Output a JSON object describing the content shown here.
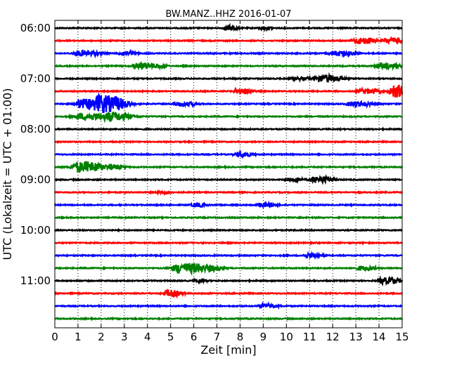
{
  "chart_data": {
    "type": "line",
    "title": "BW.MANZ..HHZ 2016-01-07",
    "xlabel": "Zeit  [min]",
    "ylabel": "UTC (Lokalzeit = UTC + 01:00)",
    "xlim": [
      0,
      15
    ],
    "x_ticks": [
      0,
      1,
      2,
      3,
      4,
      5,
      6,
      7,
      8,
      9,
      10,
      11,
      12,
      13,
      14,
      15
    ],
    "x_grid": "dotted vertical at each minute",
    "y_tick_labels": [
      "06:00",
      "07:00",
      "08:00",
      "09:00",
      "10:00",
      "11:00"
    ],
    "y_tick_positions_minutes": [
      0,
      60,
      120,
      180,
      240,
      300
    ],
    "trace_interval_minutes": 15,
    "trace_colors_cycle": [
      "#000000",
      "#ff0000",
      "#0000ff",
      "#008000"
    ],
    "traces": [
      {
        "start": "06:00",
        "color": "#000000",
        "events": [
          {
            "t": 7.5,
            "amp": 0.25,
            "width": 0.3
          },
          {
            "t": 9.0,
            "amp": 0.15,
            "width": 0.3
          }
        ]
      },
      {
        "start": "06:15",
        "color": "#ff0000",
        "events": [
          {
            "t": 13.2,
            "amp": 0.35,
            "width": 0.5
          },
          {
            "t": 14.5,
            "amp": 0.3,
            "width": 0.4
          }
        ]
      },
      {
        "start": "06:30",
        "color": "#0000ff",
        "events": [
          {
            "t": 1.2,
            "amp": 0.3,
            "width": 0.6
          },
          {
            "t": 3.0,
            "amp": 0.2,
            "width": 0.4
          },
          {
            "t": 12.2,
            "amp": 0.25,
            "width": 0.6
          }
        ]
      },
      {
        "start": "06:45",
        "color": "#008000",
        "events": [
          {
            "t": 3.6,
            "amp": 0.35,
            "width": 0.4
          },
          {
            "t": 4.3,
            "amp": 0.2,
            "width": 0.4
          },
          {
            "t": 14.2,
            "amp": 0.3,
            "width": 0.5
          }
        ]
      },
      {
        "start": "07:00",
        "color": "#000000",
        "events": [
          {
            "t": 11.6,
            "amp": 0.4,
            "width": 0.6
          },
          {
            "t": 10.5,
            "amp": 0.15,
            "width": 0.4
          }
        ]
      },
      {
        "start": "07:15",
        "color": "#ff0000",
        "events": [
          {
            "t": 8.0,
            "amp": 0.3,
            "width": 0.4
          },
          {
            "t": 13.4,
            "amp": 0.25,
            "width": 0.5
          },
          {
            "t": 14.8,
            "amp": 0.7,
            "width": 0.5
          }
        ]
      },
      {
        "start": "07:30",
        "color": "#0000ff",
        "events": [
          {
            "t": 1.3,
            "amp": 0.55,
            "width": 0.6
          },
          {
            "t": 2.2,
            "amp": 0.9,
            "width": 0.7
          },
          {
            "t": 5.5,
            "amp": 0.2,
            "width": 0.5
          },
          {
            "t": 13.0,
            "amp": 0.25,
            "width": 0.6
          }
        ]
      },
      {
        "start": "07:45",
        "color": "#008000",
        "events": [
          {
            "t": 1.5,
            "amp": 0.35,
            "width": 1.0
          },
          {
            "t": 2.6,
            "amp": 0.3,
            "width": 0.6
          }
        ]
      },
      {
        "start": "08:00",
        "color": "#000000",
        "events": []
      },
      {
        "start": "08:15",
        "color": "#ff0000",
        "events": []
      },
      {
        "start": "08:30",
        "color": "#0000ff",
        "events": [
          {
            "t": 8.0,
            "amp": 0.25,
            "width": 0.4
          }
        ]
      },
      {
        "start": "08:45",
        "color": "#008000",
        "events": [
          {
            "t": 1.2,
            "amp": 0.6,
            "width": 0.7
          },
          {
            "t": 2.5,
            "amp": 0.25,
            "width": 0.4
          }
        ]
      },
      {
        "start": "09:00",
        "color": "#000000",
        "events": [
          {
            "t": 11.4,
            "amp": 0.35,
            "width": 0.5
          },
          {
            "t": 10.2,
            "amp": 0.15,
            "width": 0.4
          }
        ]
      },
      {
        "start": "09:15",
        "color": "#ff0000",
        "events": [
          {
            "t": 4.6,
            "amp": 0.15,
            "width": 0.3
          }
        ]
      },
      {
        "start": "09:30",
        "color": "#0000ff",
        "events": [
          {
            "t": 6.1,
            "amp": 0.2,
            "width": 0.3
          },
          {
            "t": 9.0,
            "amp": 0.25,
            "width": 0.4
          }
        ]
      },
      {
        "start": "09:45",
        "color": "#008000",
        "events": []
      },
      {
        "start": "10:00",
        "color": "#000000",
        "events": []
      },
      {
        "start": "10:15",
        "color": "#ff0000",
        "events": []
      },
      {
        "start": "10:30",
        "color": "#0000ff",
        "events": [
          {
            "t": 11.0,
            "amp": 0.25,
            "width": 0.4
          }
        ]
      },
      {
        "start": "10:45",
        "color": "#008000",
        "events": [
          {
            "t": 5.6,
            "amp": 0.55,
            "width": 0.8
          },
          {
            "t": 6.8,
            "amp": 0.2,
            "width": 0.4
          },
          {
            "t": 13.3,
            "amp": 0.25,
            "width": 0.4
          }
        ]
      },
      {
        "start": "11:00",
        "color": "#000000",
        "events": [
          {
            "t": 14.3,
            "amp": 0.35,
            "width": 0.5
          },
          {
            "t": 6.2,
            "amp": 0.15,
            "width": 0.3
          }
        ]
      },
      {
        "start": "11:15",
        "color": "#ff0000",
        "events": [
          {
            "t": 4.9,
            "amp": 0.35,
            "width": 0.25
          },
          {
            "t": 5.3,
            "amp": 0.2,
            "width": 0.25
          }
        ]
      },
      {
        "start": "11:30",
        "color": "#0000ff",
        "events": [
          {
            "t": 9.1,
            "amp": 0.25,
            "width": 0.4
          }
        ]
      },
      {
        "start": "11:45",
        "color": "#008000",
        "events": []
      }
    ]
  }
}
